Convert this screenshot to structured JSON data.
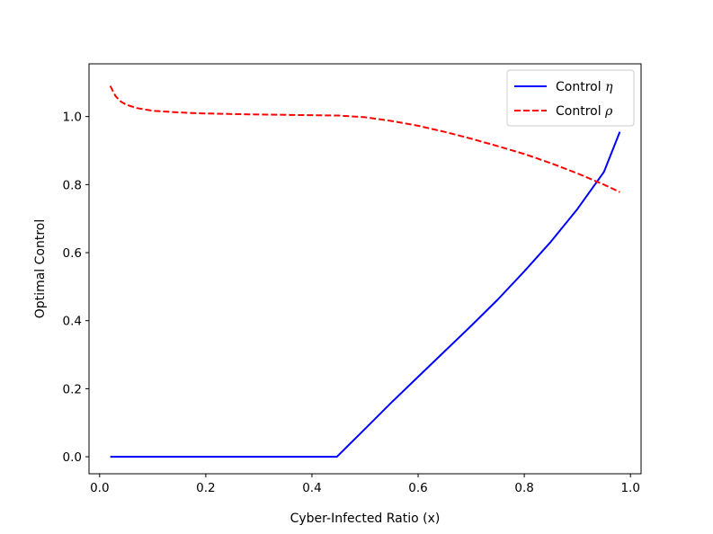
{
  "chart_data": {
    "type": "line",
    "title": "",
    "xlabel": "Cyber-Infected Ratio (x)",
    "ylabel": "Optimal Control",
    "xlim": [
      -0.02,
      1.02
    ],
    "ylim": [
      -0.05,
      1.155
    ],
    "xticks": [
      0.0,
      0.2,
      0.4,
      0.6,
      0.8,
      1.0
    ],
    "xtick_labels": [
      "0.0",
      "0.2",
      "0.4",
      "0.6",
      "0.8",
      "1.0"
    ],
    "yticks": [
      0.0,
      0.2,
      0.4,
      0.6,
      0.8,
      1.0
    ],
    "ytick_labels": [
      "0.0",
      "0.2",
      "0.4",
      "0.6",
      "0.8",
      "1.0"
    ],
    "legend_position": "top-right",
    "grid": false,
    "series": [
      {
        "name": "Control η",
        "label_text": "Control ",
        "label_symbol": "η",
        "color": "#0000ff",
        "style": "solid",
        "x": [
          0.02,
          0.1,
          0.2,
          0.3,
          0.4,
          0.447,
          0.5,
          0.55,
          0.6,
          0.65,
          0.7,
          0.75,
          0.8,
          0.85,
          0.9,
          0.95,
          0.98
        ],
        "y": [
          0.0,
          0.0,
          0.0,
          0.0,
          0.0,
          0.0,
          0.082,
          0.16,
          0.235,
          0.31,
          0.385,
          0.462,
          0.545,
          0.632,
          0.728,
          0.837,
          0.955
        ]
      },
      {
        "name": "Control ρ",
        "label_text": "Control ",
        "label_symbol": "ρ",
        "color": "#ff0000",
        "style": "dashed",
        "x": [
          0.02,
          0.03,
          0.04,
          0.05,
          0.07,
          0.1,
          0.15,
          0.2,
          0.3,
          0.4,
          0.45,
          0.5,
          0.55,
          0.6,
          0.65,
          0.7,
          0.75,
          0.8,
          0.85,
          0.9,
          0.95,
          0.98
        ],
        "y": [
          1.09,
          1.06,
          1.044,
          1.035,
          1.025,
          1.017,
          1.012,
          1.009,
          1.006,
          1.004,
          1.003,
          0.998,
          0.987,
          0.973,
          0.955,
          0.935,
          0.913,
          0.89,
          0.863,
          0.833,
          0.8,
          0.778
        ]
      }
    ]
  }
}
